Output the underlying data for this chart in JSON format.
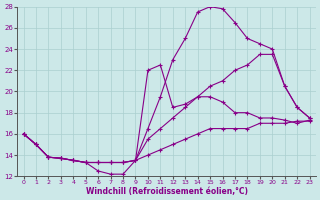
{
  "xlabel": "Windchill (Refroidissement éolien,°C)",
  "xlim": [
    -0.5,
    23.5
  ],
  "ylim": [
    12,
    28
  ],
  "yticks": [
    12,
    14,
    16,
    18,
    20,
    22,
    24,
    26,
    28
  ],
  "xticks": [
    0,
    1,
    2,
    3,
    4,
    5,
    6,
    7,
    8,
    9,
    10,
    11,
    12,
    13,
    14,
    15,
    16,
    17,
    18,
    19,
    20,
    21,
    22,
    23
  ],
  "background_color": "#cce8e8",
  "grid_color": "#aacfcf",
  "line_color": "#880088",
  "line1_x": [
    0,
    1,
    2,
    3,
    4,
    5,
    6,
    7,
    8,
    9,
    10,
    11,
    12,
    13,
    14,
    15,
    16,
    17,
    18,
    19,
    20,
    21,
    22,
    23
  ],
  "line1_y": [
    16.0,
    15.0,
    13.8,
    13.7,
    13.5,
    13.3,
    12.5,
    12.2,
    12.2,
    13.5,
    22.0,
    22.5,
    18.5,
    18.8,
    19.5,
    19.5,
    19.0,
    18.0,
    18.0,
    17.5,
    17.5,
    17.3,
    17.0,
    17.3
  ],
  "line2_x": [
    0,
    1,
    2,
    3,
    4,
    5,
    6,
    7,
    8,
    9,
    10,
    11,
    12,
    13,
    14,
    15,
    16,
    17,
    18,
    19,
    20,
    21,
    22,
    23
  ],
  "line2_y": [
    16.0,
    15.0,
    13.8,
    13.7,
    13.5,
    13.3,
    13.3,
    13.3,
    13.3,
    13.5,
    15.5,
    16.5,
    17.5,
    18.5,
    19.5,
    20.5,
    21.0,
    22.0,
    22.5,
    23.5,
    23.5,
    20.5,
    18.5,
    17.5
  ],
  "line3_x": [
    0,
    1,
    2,
    3,
    4,
    5,
    6,
    7,
    8,
    9,
    10,
    11,
    12,
    13,
    14,
    15,
    16,
    17,
    18,
    19,
    20,
    21,
    22,
    23
  ],
  "line3_y": [
    16.0,
    15.0,
    13.8,
    13.7,
    13.5,
    13.3,
    13.3,
    13.3,
    13.3,
    13.5,
    16.5,
    19.5,
    23.0,
    25.0,
    27.5,
    28.0,
    27.8,
    26.5,
    25.0,
    24.5,
    24.0,
    20.5,
    18.5,
    17.5
  ],
  "line4_x": [
    0,
    1,
    2,
    3,
    4,
    5,
    6,
    7,
    8,
    9,
    10,
    11,
    12,
    13,
    14,
    15,
    16,
    17,
    18,
    19,
    20,
    21,
    22,
    23
  ],
  "line4_y": [
    16.0,
    15.0,
    13.8,
    13.7,
    13.5,
    13.3,
    13.3,
    13.3,
    13.3,
    13.5,
    14.0,
    14.5,
    15.0,
    15.5,
    16.0,
    16.5,
    16.5,
    16.5,
    16.5,
    17.0,
    17.0,
    17.0,
    17.2,
    17.2
  ]
}
